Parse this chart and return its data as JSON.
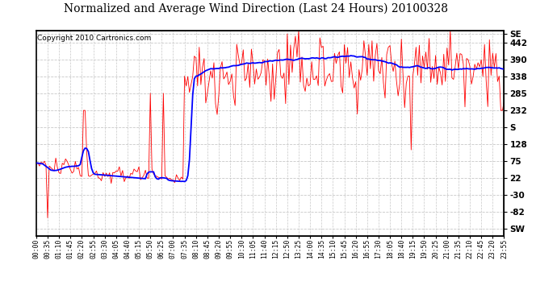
{
  "title": "Normalized and Average Wind Direction (Last 24 Hours) 20100328",
  "copyright": "Copyright 2010 Cartronics.com",
  "bg_color": "#ffffff",
  "plot_bg_color": "#ffffff",
  "grid_color": "#c8c8c8",
  "border_color": "#000000",
  "yticks_right": [
    "SE",
    442,
    390,
    338,
    285,
    232,
    "S",
    128,
    75,
    22,
    -30,
    -82,
    "SW"
  ],
  "ytick_values": [
    468,
    442,
    390,
    338,
    285,
    232,
    180,
    128,
    75,
    22,
    -30,
    -82,
    -134
  ],
  "ylim": [
    -155,
    480
  ],
  "title_fontsize": 10,
  "copyright_fontsize": 6.5,
  "red_color": "#ff0000",
  "blue_color": "#0000ff",
  "n_points": 288,
  "xtick_labels": [
    "00:00",
    "00:35",
    "01:10",
    "01:45",
    "02:20",
    "02:55",
    "03:30",
    "04:05",
    "04:40",
    "05:15",
    "05:50",
    "06:25",
    "07:00",
    "07:35",
    "08:10",
    "08:45",
    "09:20",
    "09:55",
    "10:30",
    "11:05",
    "11:40",
    "12:15",
    "12:50",
    "13:25",
    "14:00",
    "14:35",
    "15:10",
    "15:45",
    "16:20",
    "16:55",
    "17:30",
    "18:05",
    "18:40",
    "19:15",
    "19:50",
    "20:25",
    "21:00",
    "21:35",
    "22:10",
    "22:45",
    "23:20",
    "23:55"
  ]
}
